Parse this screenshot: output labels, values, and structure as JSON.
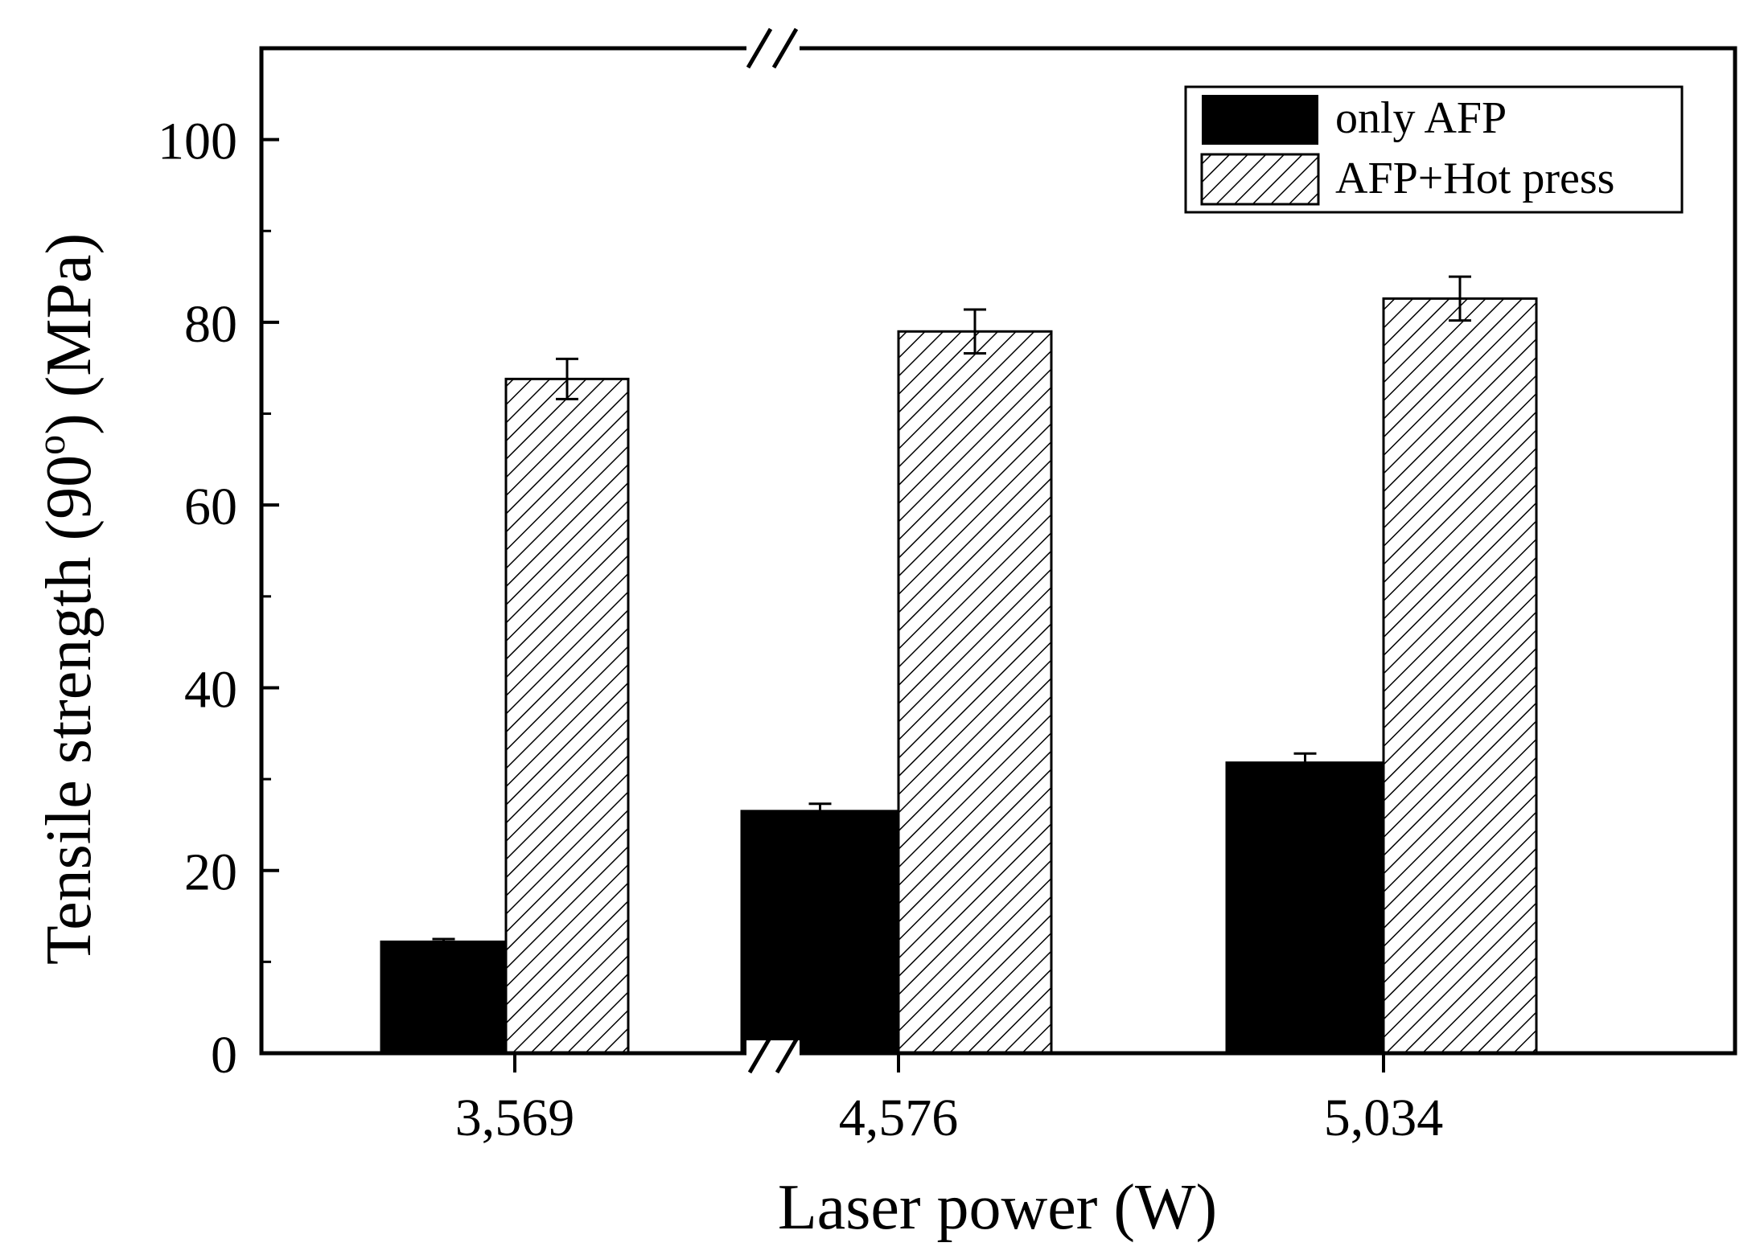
{
  "chart_data": {
    "type": "bar",
    "title": "",
    "xlabel": "Laser power (W)",
    "ylabel_main": "Tensile strength (90",
    "ylabel_sup": "o",
    "ylabel_tail": ") (MPa)",
    "categories": [
      "3,569",
      "4,576",
      "5,034"
    ],
    "ylim": [
      0,
      110
    ],
    "yticks": [
      0,
      20,
      40,
      60,
      80,
      100
    ],
    "ytick_labels": [
      "0",
      "20",
      "40",
      "60",
      "80",
      "100"
    ],
    "axis_break": "//",
    "series": [
      {
        "name": "only AFP",
        "fill": "solid",
        "color": "#000000",
        "values": [
          12.2,
          26.5,
          31.8
        ],
        "errors": [
          0.3,
          0.8,
          1.0
        ]
      },
      {
        "name": "AFP+Hot press",
        "fill": "hatched",
        "color": "#000000",
        "values": [
          73.8,
          79.0,
          82.6
        ],
        "errors": [
          2.2,
          2.4,
          2.4
        ]
      }
    ],
    "legend_position": "top-right",
    "grid": false
  }
}
